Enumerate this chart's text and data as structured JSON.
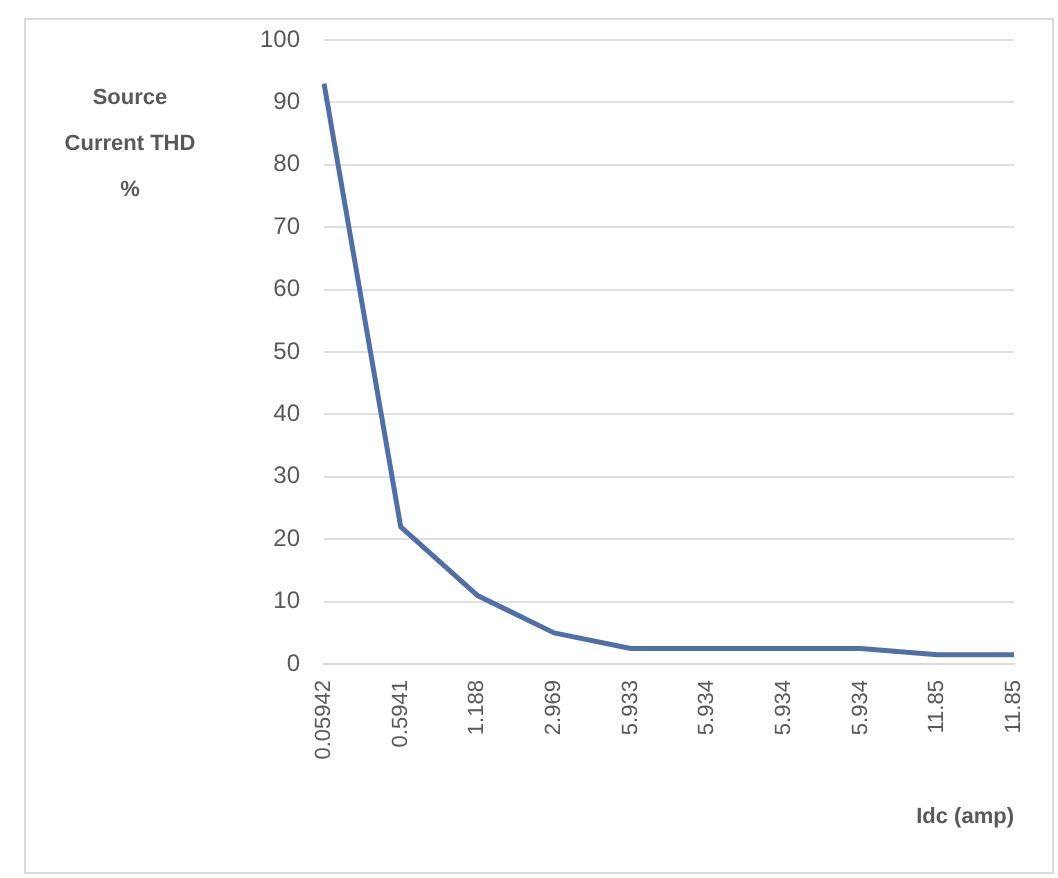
{
  "chart_data": {
    "type": "line",
    "ylabel": "Source Current THD %",
    "xlabel": "Idc (amp)",
    "categories": [
      "0.05942",
      "0.5941",
      "1.188",
      "2.969",
      "5.933",
      "5.934",
      "5.934",
      "5.934",
      "11.85",
      "11.85"
    ],
    "series": [
      {
        "color": "#4f6fa8",
        "values": [
          93,
          22,
          11,
          5,
          2.5,
          2.5,
          2.5,
          2.5,
          1.5,
          1.5
        ]
      }
    ],
    "ylim": [
      0,
      100
    ],
    "yticks": [
      0,
      10,
      20,
      30,
      40,
      50,
      60,
      70,
      80,
      90,
      100
    ],
    "grid": "y",
    "legend": false,
    "marker": "none",
    "line_style": "solid"
  }
}
